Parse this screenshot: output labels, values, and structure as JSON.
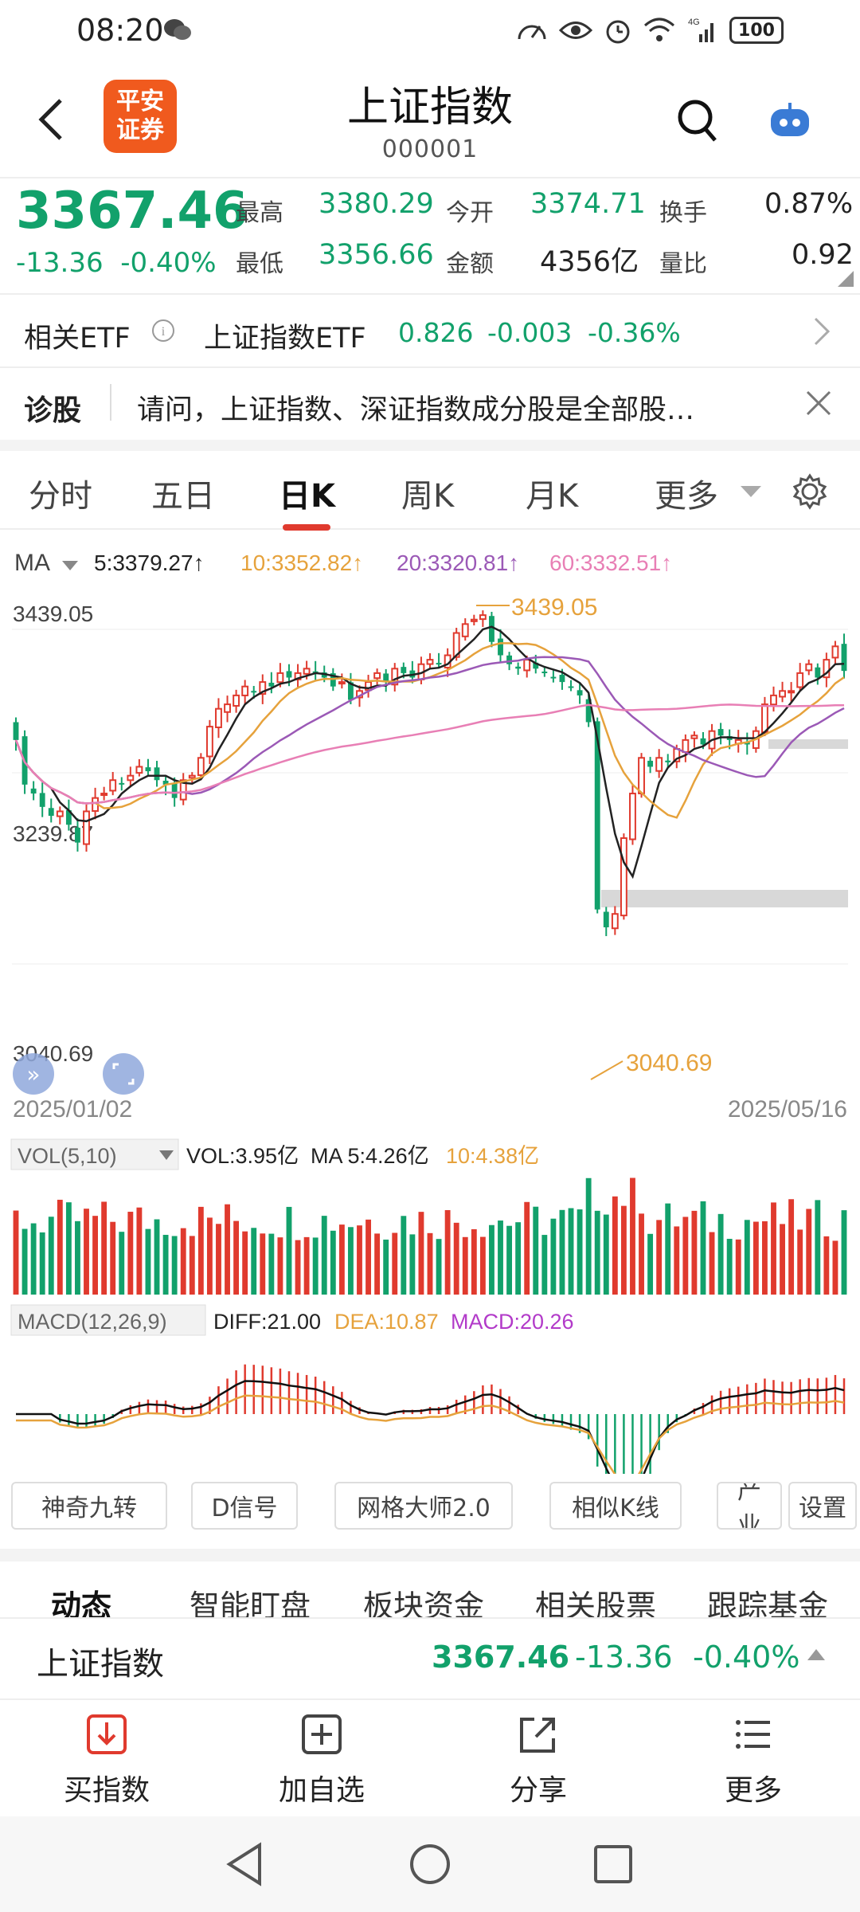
{
  "status": {
    "time": "08:20",
    "network": "4G",
    "battery": "100"
  },
  "header": {
    "logo_line1": "平安",
    "logo_line2": "证券",
    "title": "上证指数",
    "code": "000001"
  },
  "quote": {
    "price": "3367.46",
    "change": "-13.36",
    "change_pct": "-0.40%",
    "high_label": "最高",
    "high": "3380.29",
    "low_label": "最低",
    "low": "3356.66",
    "open_label": "今开",
    "open": "3374.71",
    "amount_label": "金额",
    "amount": "4356亿",
    "turnover_label": "换手",
    "turnover": "0.87%",
    "volratio_label": "量比",
    "volratio": "0.92"
  },
  "etf": {
    "label": "相关ETF",
    "name": "上证指数ETF",
    "price": "0.826",
    "change": "-0.003",
    "change_pct": "-0.36%"
  },
  "diagnosis": {
    "label": "诊股",
    "text": "请问，上证指数、深证指数成分股是全部股…"
  },
  "tabs": [
    "分时",
    "五日",
    "日K",
    "周K",
    "月K",
    "更多"
  ],
  "ma_legend": {
    "label": "MA",
    "ma5": "5:3379.27↑",
    "ma10": "10:3352.82↑",
    "ma20": "20:3320.81↑",
    "ma60": "60:3332.51↑"
  },
  "chart_labels": {
    "high": "3439.05",
    "mid": "3239.87",
    "low": "3040.69",
    "high_marker": "3439.05",
    "low_marker": "3040.69",
    "date_start": "2025/01/02",
    "date_end": "2025/05/16"
  },
  "vol_legend": {
    "label": "VOL(5,10)",
    "vol": "VOL:3.95亿",
    "ma5": "MA 5:4.26亿",
    "ma10": "10:4.38亿"
  },
  "macd_legend": {
    "label": "MACD(12,26,9)",
    "diff": "DIFF:21.00",
    "dea": "DEA:10.87",
    "macd": "MACD:20.26"
  },
  "tools": [
    "神奇九转",
    "D信号",
    "网格大师2.0",
    "相似K线",
    "产业",
    "设置"
  ],
  "detail_tabs": [
    "动态",
    "智能盯盘",
    "板块资金",
    "相关股票",
    "跟踪基金"
  ],
  "bottom": {
    "name": "上证指数",
    "price": "3367.46",
    "change": "-13.36",
    "change_pct": "-0.40%"
  },
  "actions": [
    "买指数",
    "加自选",
    "分享",
    "更多"
  ],
  "colors": {
    "up": "#e03a2e",
    "down": "#12a16b",
    "ma5": "#222222",
    "ma10": "#e6a23c",
    "ma20": "#9b59b6",
    "ma60": "#e87fb5",
    "brand": "#f05a1e"
  },
  "chart_data": {
    "type": "candlestick",
    "x_range": [
      "2025/01/02",
      "2025/05/16"
    ],
    "y_range": [
      3040.69,
      3439.05
    ],
    "y_ticks": [
      3439.05,
      3239.87,
      3040.69
    ],
    "period_high": 3439.05,
    "period_low": 3040.69,
    "close_series": [
      3290,
      3240,
      3230,
      3215,
      3205,
      3210,
      3195,
      3175,
      3210,
      3225,
      3230,
      3245,
      3240,
      3250,
      3260,
      3255,
      3245,
      3240,
      3225,
      3245,
      3250,
      3270,
      3305,
      3325,
      3330,
      3340,
      3350,
      3345,
      3355,
      3350,
      3365,
      3360,
      3365,
      3370,
      3365,
      3360,
      3350,
      3355,
      3335,
      3345,
      3355,
      3365,
      3355,
      3370,
      3365,
      3360,
      3375,
      3380,
      3375,
      3385,
      3410,
      3420,
      3425,
      3430,
      3400,
      3385,
      3375,
      3370,
      3380,
      3370,
      3365,
      3360,
      3355,
      3350,
      3340,
      3310,
      3100,
      3080,
      3095,
      3180,
      3230,
      3270,
      3260,
      3270,
      3265,
      3280,
      3290,
      3295,
      3285,
      3300,
      3295,
      3290,
      3290,
      3285,
      3300,
      3330,
      3340,
      3345,
      3345,
      3365,
      3375,
      3360,
      3380,
      3395,
      3367.46
    ],
    "ma_latest": {
      "MA5": 3379.27,
      "MA10": 3352.82,
      "MA20": 3320.81,
      "MA60": 3332.51
    },
    "volume_latest": {
      "VOL": "3.95亿",
      "MA5": "4.26亿",
      "MA10": "4.38亿"
    },
    "macd_latest": {
      "DIFF": 21.0,
      "DEA": 10.87,
      "MACD": 20.26
    }
  }
}
